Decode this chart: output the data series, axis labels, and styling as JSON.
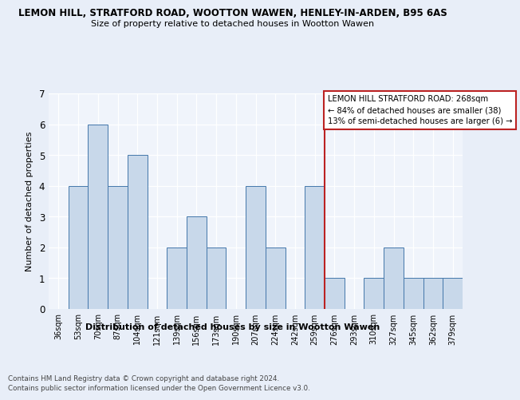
{
  "title": "LEMON HILL, STRATFORD ROAD, WOOTTON WAWEN, HENLEY-IN-ARDEN, B95 6AS",
  "subtitle": "Size of property relative to detached houses in Wootton Wawen",
  "xlabel": "Distribution of detached houses by size in Wootton Wawen",
  "ylabel": "Number of detached properties",
  "categories": [
    "36sqm",
    "53sqm",
    "70sqm",
    "87sqm",
    "104sqm",
    "121sqm",
    "139sqm",
    "156sqm",
    "173sqm",
    "190sqm",
    "207sqm",
    "224sqm",
    "242sqm",
    "259sqm",
    "276sqm",
    "293sqm",
    "310sqm",
    "327sqm",
    "345sqm",
    "362sqm",
    "379sqm"
  ],
  "values": [
    0,
    4,
    6,
    4,
    5,
    0,
    2,
    3,
    2,
    0,
    4,
    2,
    0,
    4,
    1,
    0,
    1,
    2,
    1,
    1,
    1
  ],
  "bar_color": "#c8d8ea",
  "bar_edge_color": "#4477aa",
  "vline_index": 13,
  "vline_color": "#bb2222",
  "annotation_text": "LEMON HILL STRATFORD ROAD: 268sqm\n← 84% of detached houses are smaller (38)\n13% of semi-detached houses are larger (6) →",
  "annotation_box_color": "#bb2222",
  "ylim": [
    0,
    7
  ],
  "yticks": [
    0,
    1,
    2,
    3,
    4,
    5,
    6,
    7
  ],
  "footer1": "Contains HM Land Registry data © Crown copyright and database right 2024.",
  "footer2": "Contains public sector information licensed under the Open Government Licence v3.0.",
  "bg_color": "#e8eef8",
  "plot_bg_color": "#f0f4fb"
}
